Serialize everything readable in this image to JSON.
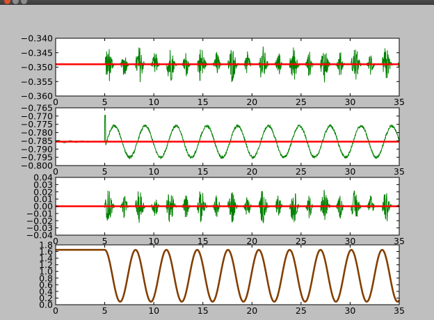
{
  "window": {},
  "chart_data": [
    {
      "type": "line",
      "ylim": [
        -0.36,
        -0.34
      ],
      "xlim": [
        0,
        35
      ],
      "xticks": [
        "0",
        "5",
        "10",
        "15",
        "20",
        "25",
        "30",
        "35"
      ],
      "yticks": [
        "−0.360",
        "−0.355",
        "−0.350",
        "−0.345",
        "−0.340"
      ],
      "ytick_values": [
        -0.36,
        -0.355,
        -0.35,
        -0.345,
        -0.34
      ],
      "series": [
        {
          "color": "#008000",
          "kind": "bursts",
          "baseline": -0.349,
          "amp": 0.0065,
          "start": 5.0,
          "period": 3.14,
          "noise_amp": 0.00015
        },
        {
          "color": "#ff0000",
          "kind": "constant",
          "value": -0.349
        }
      ]
    },
    {
      "type": "line",
      "ylim": [
        -0.8,
        -0.765
      ],
      "xlim": [
        0,
        35
      ],
      "xticks": [
        "0",
        "5",
        "10",
        "15",
        "20",
        "25",
        "30",
        "35"
      ],
      "yticks": [
        "−0.800",
        "−0.795",
        "−0.790",
        "−0.785",
        "−0.780",
        "−0.775",
        "−0.770",
        "−0.765"
      ],
      "ytick_values": [
        -0.8,
        -0.795,
        -0.79,
        -0.785,
        -0.78,
        -0.775,
        -0.77,
        -0.765
      ],
      "series": [
        {
          "color": "#008000",
          "kind": "wave",
          "baseline": -0.7855,
          "amp": 0.0095,
          "start": 5.0,
          "period": 3.14,
          "spike": -0.7695
        },
        {
          "color": "#ff0000",
          "kind": "constant",
          "value": -0.7855
        }
      ]
    },
    {
      "type": "line",
      "ylim": [
        -0.04,
        0.04
      ],
      "xlim": [
        0,
        35
      ],
      "xticks": [
        "0",
        "5",
        "10",
        "15",
        "20",
        "25",
        "30",
        "35"
      ],
      "yticks": [
        "−0.04",
        "−0.03",
        "−0.02",
        "−0.01",
        "0.00",
        "0.01",
        "0.02",
        "0.03",
        "0.04"
      ],
      "ytick_values": [
        -0.04,
        -0.03,
        -0.02,
        -0.01,
        0.0,
        0.01,
        0.02,
        0.03,
        0.04
      ],
      "series": [
        {
          "color": "#008000",
          "kind": "bursts",
          "baseline": 0.0,
          "amp": 0.024,
          "start": 5.0,
          "period": 3.14,
          "noise_amp": 0.0006
        },
        {
          "color": "#ff0000",
          "kind": "constant",
          "value": 0.0
        }
      ]
    },
    {
      "type": "line",
      "ylim": [
        0.0,
        1.8
      ],
      "xlim": [
        0,
        35
      ],
      "xticks": [
        "0",
        "5",
        "10",
        "15",
        "20",
        "25",
        "30",
        "35"
      ],
      "yticks": [
        "0.0",
        "0.2",
        "0.4",
        "0.6",
        "0.8",
        "1.0",
        "1.2",
        "1.4",
        "1.6",
        "1.8"
      ],
      "ytick_values": [
        0.0,
        0.2,
        0.4,
        0.6,
        0.8,
        1.0,
        1.2,
        1.4,
        1.6,
        1.8
      ],
      "series": [
        {
          "color": "#ff0000",
          "kind": "cosine",
          "hold": 1.65,
          "start": 5.0,
          "center": 0.87,
          "amp": 0.7,
          "period": 3.14
        },
        {
          "color": "#008000",
          "kind": "cosine",
          "hold": 1.65,
          "start": 5.0,
          "center": 0.87,
          "amp": 0.7,
          "period": 3.14,
          "opacity": 0.5
        }
      ]
    }
  ]
}
